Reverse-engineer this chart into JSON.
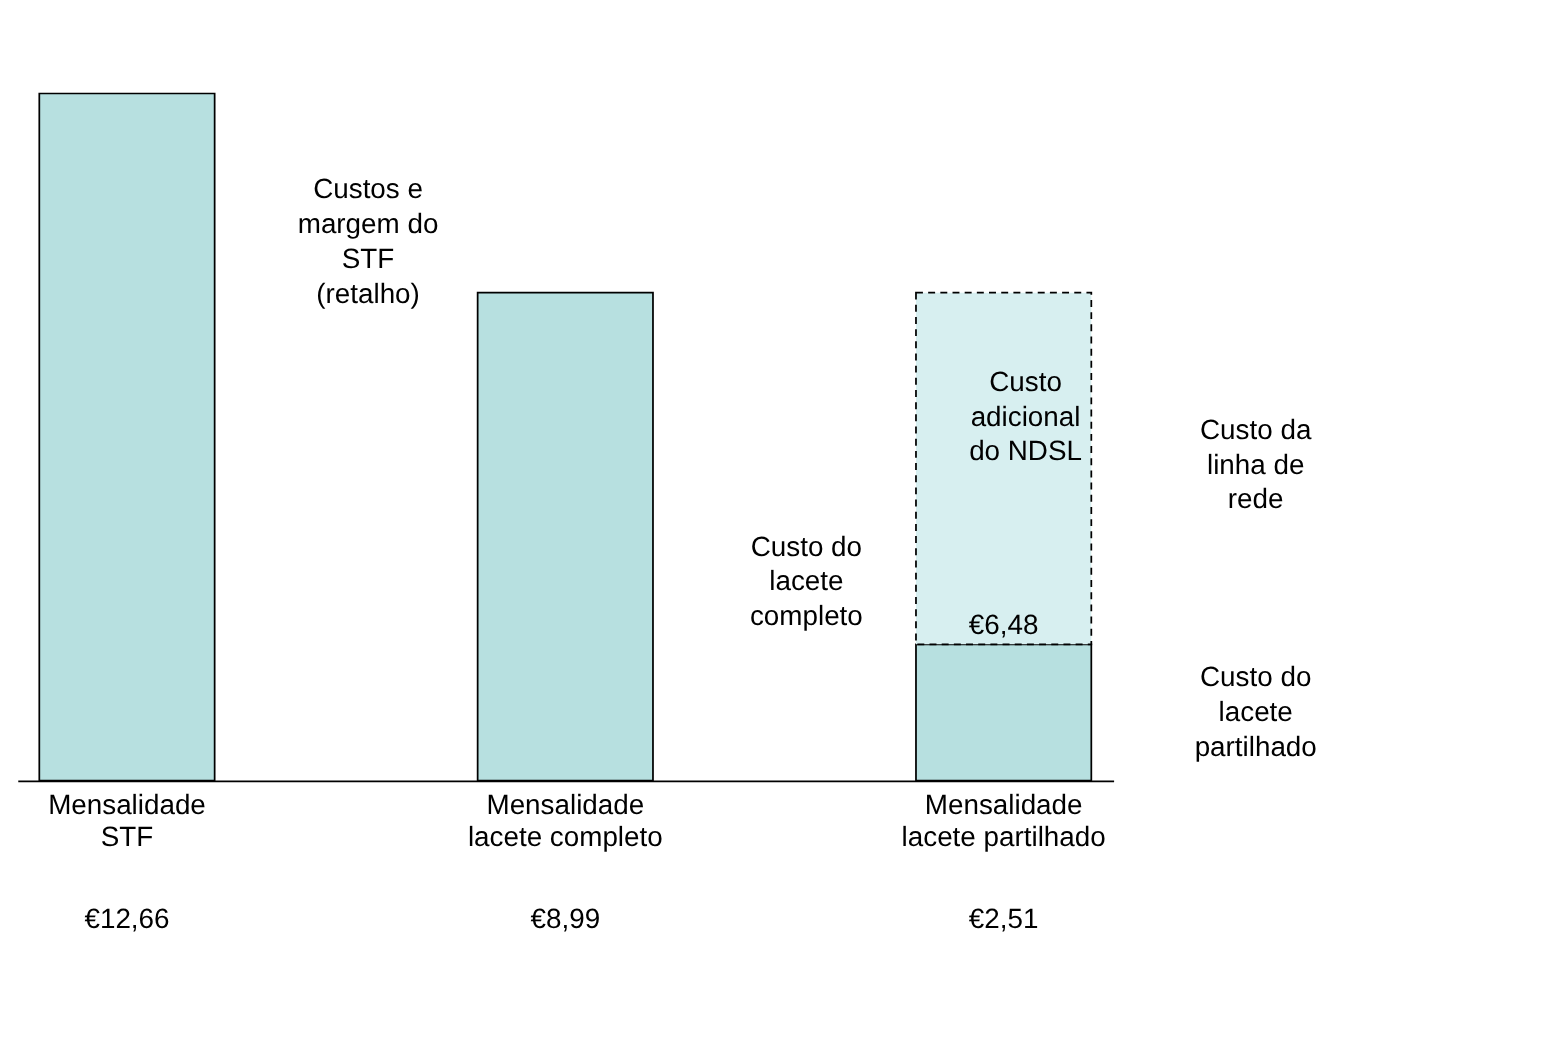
{
  "chart_data": {
    "type": "bar",
    "stacked": true,
    "categories": [
      "Mensalidade STF",
      "Mensalidade lacete completo",
      "Mensalidade lacete partilhado"
    ],
    "series": [
      {
        "color": "#b7e0e0",
        "values": [
          12.66,
          8.99,
          2.51
        ],
        "value_labels": [
          "€12,66",
          "€8,99",
          "€2,51"
        ]
      },
      {
        "color": "#d7eff0",
        "values": [
          null,
          null,
          6.48
        ],
        "value_labels": [
          null,
          null,
          "€6,48"
        ],
        "line_style": "dashed"
      }
    ],
    "annotations": [
      "Custos e margem do STF (retalho)",
      "Custo do lacete completo",
      "Custo adicional do NDSL",
      "Custo da linha de rede",
      "Custo do lacete partilhado"
    ]
  }
}
